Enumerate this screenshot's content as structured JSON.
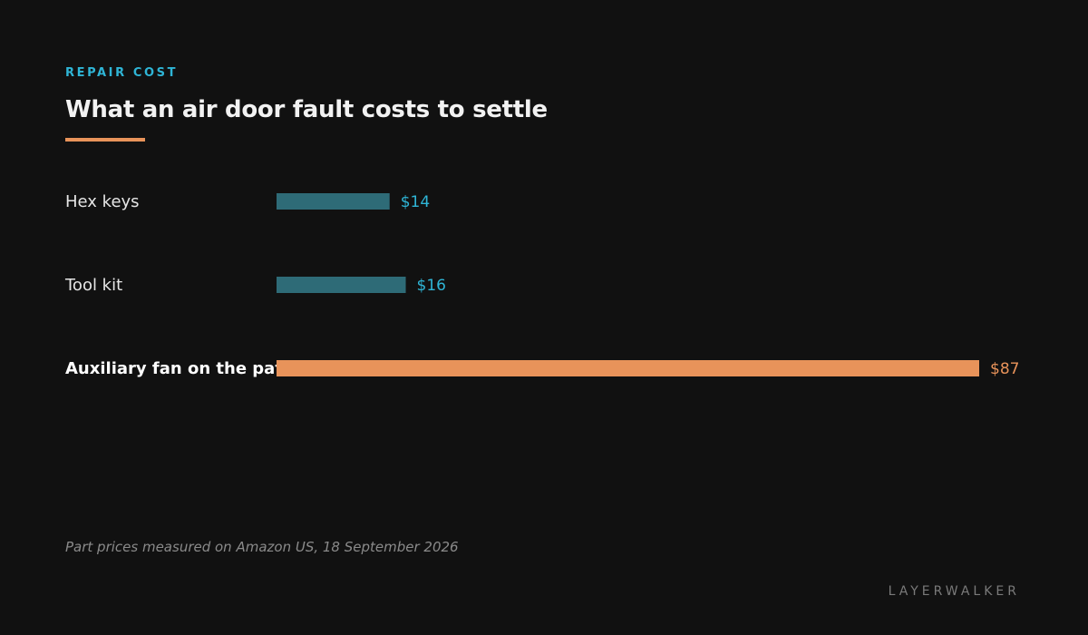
{
  "header": {
    "eyebrow": "REPAIR COST",
    "title": "What an air door fault costs to settle"
  },
  "chart_data": {
    "type": "bar",
    "orientation": "horizontal",
    "categories": [
      "Hex keys",
      "Tool kit",
      "Auxiliary fan on the path"
    ],
    "values": [
      14,
      16,
      87
    ],
    "value_labels": [
      "$14",
      "$16",
      "$87"
    ],
    "highlighted_category": "Auxiliary fan on the path",
    "xlim": [
      0,
      87
    ],
    "grid": false,
    "colors": {
      "default_bar": "#2e6b77",
      "default_label": "#2fb5d6",
      "highlight_bar": "#e8935a",
      "highlight_label": "#e8935a"
    }
  },
  "footer": {
    "note": "Part prices measured on Amazon US, 18 September 2026",
    "brand": "LAYERWALKER"
  }
}
